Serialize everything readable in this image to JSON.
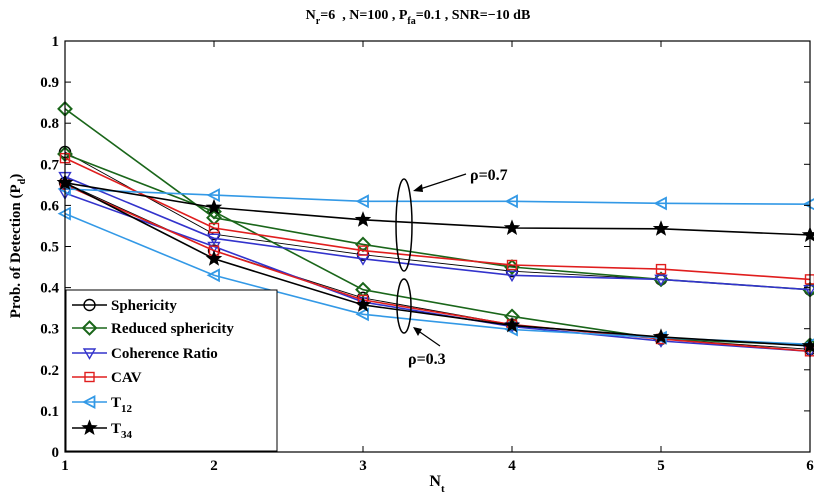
{
  "chart_data": {
    "type": "line",
    "title": {
      "nr_main": "N",
      "nr_sub": "r",
      "nr_val": "=6",
      "n_part": "  , N=100 , ",
      "pfa_main": "P",
      "pfa_sub": "fa",
      "pfa_val": "=0.1",
      "snr_part": " , SNR=−10 dB"
    },
    "xlabel": {
      "main": "N",
      "sub": "t"
    },
    "ylabel": {
      "main": "Prob. of Detection (P",
      "sub": "d",
      "close": ")"
    },
    "xlim": [
      1,
      6
    ],
    "ylim": [
      0,
      1
    ],
    "xticks": [
      "1",
      "2",
      "3",
      "4",
      "5",
      "6"
    ],
    "yticks": [
      "0",
      "0.1",
      "0.2",
      "0.3",
      "0.4",
      "0.5",
      "0.6",
      "0.7",
      "0.8",
      "0.9",
      "1"
    ],
    "x": [
      1,
      2,
      3,
      4,
      5,
      6
    ],
    "series": [
      {
        "name": "Sphericity",
        "name_sub": "",
        "color": "#000000",
        "marker": "circle",
        "rho07": [
          0.73,
          0.53,
          0.48,
          0.44,
          0.42,
          0.395
        ],
        "rho03": [
          0.655,
          0.49,
          0.375,
          0.31,
          0.275,
          0.25
        ]
      },
      {
        "name": "Reduced sphericity",
        "name_sub": "",
        "color": "#1a661a",
        "marker": "diamond",
        "rho07": [
          0.835,
          0.57,
          0.505,
          0.45,
          0.42,
          0.395
        ],
        "rho03": [
          0.725,
          0.585,
          0.395,
          0.33,
          0.275,
          0.26
        ]
      },
      {
        "name": "Coherence Ratio",
        "name_sub": "",
        "color": "#3333cc",
        "marker": "triangle-down",
        "rho07": [
          0.67,
          0.52,
          0.47,
          0.43,
          0.42,
          0.395
        ],
        "rho03": [
          0.63,
          0.5,
          0.365,
          0.305,
          0.27,
          0.245
        ]
      },
      {
        "name": "CAV",
        "name_sub": "",
        "color": "#e01e1e",
        "marker": "square",
        "rho07": [
          0.715,
          0.545,
          0.49,
          0.455,
          0.445,
          0.42
        ],
        "rho03": [
          0.65,
          0.49,
          0.37,
          0.31,
          0.275,
          0.245
        ]
      },
      {
        "name": "T",
        "name_sub": "12",
        "color": "#3399e6",
        "marker": "triangle-left",
        "rho07": [
          0.64,
          0.625,
          0.61,
          0.61,
          0.605,
          0.603
        ],
        "rho03": [
          0.58,
          0.43,
          0.335,
          0.298,
          0.278,
          0.262
        ]
      },
      {
        "name": "T",
        "name_sub": "34",
        "color": "#000000",
        "marker": "star",
        "rho07": [
          0.655,
          0.595,
          0.565,
          0.545,
          0.543,
          0.528
        ],
        "rho03": [
          0.655,
          0.47,
          0.358,
          0.308,
          0.28,
          0.258
        ]
      }
    ],
    "annotations": [
      {
        "label": "ρ=0.7",
        "group": "rho07"
      },
      {
        "label": "ρ=0.3",
        "group": "rho03"
      }
    ],
    "legend_position": "bottom-left",
    "grid": false
  }
}
